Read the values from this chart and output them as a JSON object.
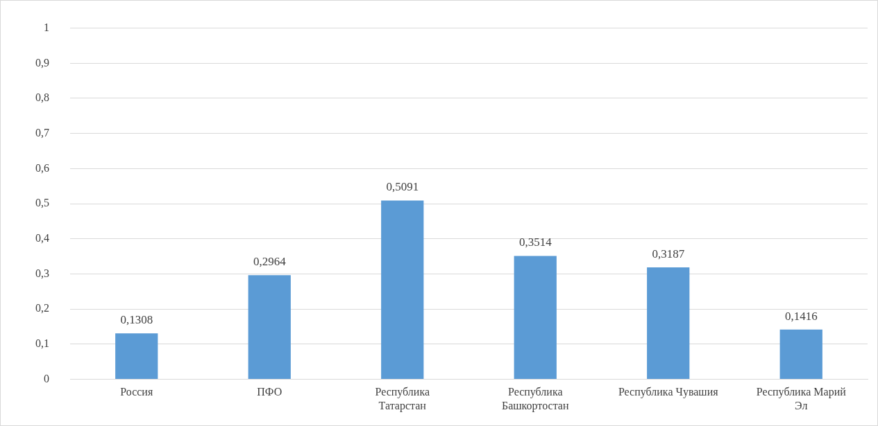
{
  "chart_data": {
    "type": "bar",
    "categories": [
      "Россия",
      "ПФО",
      "Республика Татарстан",
      "Республика Башкортостан",
      "Республика Чувашия",
      "Республика Марий Эл"
    ],
    "values": [
      0.1308,
      0.2964,
      0.5091,
      0.3514,
      0.3187,
      0.1416
    ],
    "value_labels": [
      "0,1308",
      "0,2964",
      "0,5091",
      "0,3514",
      "0,3187",
      "0,1416"
    ],
    "color": "#5b9bd5",
    "ylim": [
      0,
      1
    ],
    "yticks": [
      0,
      {
        "value": 0.1,
        "label": "0,1"
      },
      {
        "value": 0.2,
        "label": "0,2"
      },
      {
        "value": 0.3,
        "label": "0,3"
      },
      {
        "value": 0.4,
        "label": "0,4"
      },
      {
        "value": 0.5,
        "label": "0,5"
      },
      {
        "value": 0.6,
        "label": "0,6"
      },
      {
        "value": 0.7,
        "label": "0,7"
      },
      {
        "value": 0.8,
        "label": "0,8"
      },
      {
        "value": 0.9,
        "label": "0,9"
      },
      1
    ],
    "grid": "y",
    "legend": false
  }
}
